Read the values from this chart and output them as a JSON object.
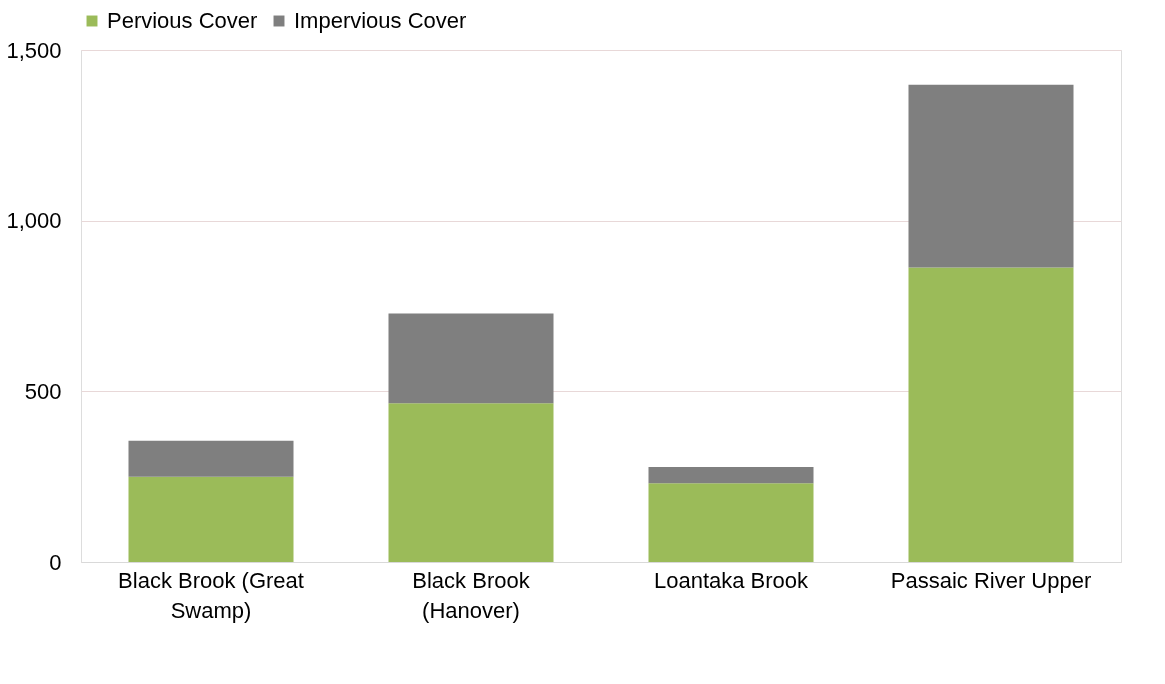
{
  "chart_data": {
    "type": "bar",
    "stacked": true,
    "categories": [
      "Black Brook (Great Swamp)",
      "Black Brook (Hanover)",
      "Loantaka Brook",
      "Passaic River Upper"
    ],
    "series": [
      {
        "name": "Pervious Cover",
        "color": "#9bbb59",
        "values": [
          250,
          465,
          231,
          863
        ]
      },
      {
        "name": "Impervious Cover",
        "color": "#7f7f7f",
        "values": [
          105,
          263,
          47,
          535
        ]
      }
    ],
    "ylim": [
      0,
      1500
    ],
    "yticks": [
      {
        "value": 0,
        "label": "0"
      },
      {
        "value": 500,
        "label": "500"
      },
      {
        "value": 1000,
        "label": "1,000"
      },
      {
        "value": 1500,
        "label": "1,500"
      }
    ],
    "grid": "y",
    "legend": "top"
  }
}
